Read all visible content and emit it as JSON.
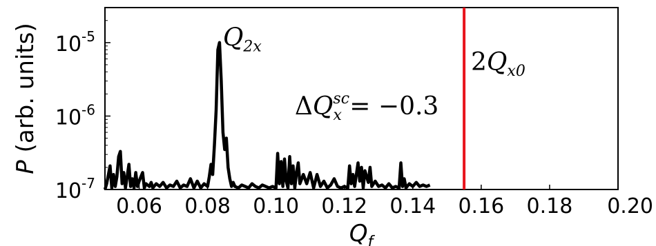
{
  "chart_data": {
    "type": "line",
    "title": "",
    "xlabel": "Q",
    "xlabel_sub": "f",
    "ylabel": "P",
    "ylabel_suffix": " (arb. units)",
    "xlim": [
      0.05,
      0.2
    ],
    "ylim": [
      1e-07,
      3e-05
    ],
    "y_scale": "log",
    "grid": false,
    "legend": "none",
    "colors": {
      "spectrum": "#000000",
      "reference_line": "#e8141c"
    },
    "x_ticks": [
      {
        "value": 0.06,
        "label": "0.06"
      },
      {
        "value": 0.08,
        "label": "0.08"
      },
      {
        "value": 0.1,
        "label": "0.10"
      },
      {
        "value": 0.12,
        "label": "0.12"
      },
      {
        "value": 0.14,
        "label": "0.14"
      },
      {
        "value": 0.16,
        "label": "0.16"
      },
      {
        "value": 0.18,
        "label": "0.18"
      },
      {
        "value": 0.2,
        "label": "0.20"
      }
    ],
    "y_ticks": [
      {
        "value": 1e-07,
        "base": "10",
        "exp": "-7"
      },
      {
        "value": 1e-06,
        "base": "10",
        "exp": "-6"
      },
      {
        "value": 1e-05,
        "base": "10",
        "exp": "-5"
      }
    ],
    "series": [
      {
        "x": [
          0.05,
          0.0505,
          0.0515,
          0.052,
          0.0525,
          0.053,
          0.0535,
          0.054,
          0.0545,
          0.055,
          0.0555,
          0.056,
          0.0565,
          0.057,
          0.0575,
          0.058,
          0.0585,
          0.059,
          0.0595,
          0.06,
          0.061,
          0.0615,
          0.062,
          0.063,
          0.0635,
          0.064,
          0.065,
          0.066,
          0.067,
          0.068,
          0.069,
          0.07,
          0.071,
          0.072,
          0.073,
          0.074,
          0.075,
          0.076,
          0.077,
          0.078,
          0.079,
          0.08,
          0.0805,
          0.081,
          0.0815,
          0.082,
          0.0825,
          0.083,
          0.0835,
          0.084,
          0.0845,
          0.085,
          0.0855,
          0.086,
          0.0865,
          0.087,
          0.0875,
          0.088,
          0.089,
          0.09,
          0.091,
          0.092,
          0.093,
          0.094,
          0.095,
          0.096,
          0.097,
          0.098,
          0.099,
          0.1,
          0.1005,
          0.101,
          0.1015,
          0.102,
          0.1025,
          0.103,
          0.1035,
          0.104,
          0.1045,
          0.105,
          0.1055,
          0.106,
          0.1065,
          0.107,
          0.108,
          0.109,
          0.11,
          0.111,
          0.112,
          0.113,
          0.114,
          0.115,
          0.116,
          0.117,
          0.118,
          0.119,
          0.12,
          0.121,
          0.1215,
          0.122,
          0.1225,
          0.123,
          0.124,
          0.1245,
          0.125,
          0.1255,
          0.126,
          0.127,
          0.1275,
          0.128,
          0.129,
          0.13,
          0.131,
          0.132,
          0.133,
          0.134,
          0.135,
          0.136,
          0.1365,
          0.137,
          0.1375,
          0.138,
          0.139,
          0.14,
          0.141,
          0.142,
          0.143,
          0.144,
          0.145
        ],
        "y": [
          1e-07,
          1.2e-07,
          2.1e-07,
          1.05e-07,
          1.6e-07,
          1.1e-07,
          1.5e-07,
          2.8e-07,
          3.3e-07,
          1.2e-07,
          1.7e-07,
          1.05e-07,
          1.5e-07,
          2.2e-07,
          1.1e-07,
          1.4e-07,
          1.05e-07,
          1.7e-07,
          1.1e-07,
          1.3e-07,
          1.7e-07,
          1.05e-07,
          1.2e-07,
          1.1e-07,
          1.25e-07,
          1.05e-07,
          1.2e-07,
          1.1e-07,
          1.25e-07,
          1.05e-07,
          1.15e-07,
          1.1e-07,
          1.3e-07,
          1.05e-07,
          1.15e-07,
          1.1e-07,
          1.4e-07,
          1.05e-07,
          1.3e-07,
          1.05e-07,
          1.2e-07,
          1.1e-07,
          1.5e-07,
          2.2e-07,
          1.6e-07,
          4e-07,
          1.2e-06,
          8e-06,
          1e-05,
          3e-06,
          6e-07,
          3.5e-07,
          5e-07,
          2e-07,
          1.4e-07,
          1.1e-07,
          1.25e-07,
          1.1e-07,
          1.05e-07,
          1.15e-07,
          1.1e-07,
          1.05e-07,
          1.2e-07,
          1.1e-07,
          1.05e-07,
          1.15e-07,
          1.1e-07,
          1.05e-07,
          1.1e-07,
          1.05e-07,
          3.1e-07,
          1.2e-07,
          2.4e-07,
          1.1e-07,
          2.6e-07,
          1.3e-07,
          1.05e-07,
          2.8e-07,
          1.2e-07,
          2.1e-07,
          1.05e-07,
          1.7e-07,
          2.3e-07,
          1.2e-07,
          1.6e-07,
          1.2e-07,
          1.7e-07,
          1.05e-07,
          1.6e-07,
          1.1e-07,
          1.3e-07,
          1.05e-07,
          1.15e-07,
          1.4e-07,
          1.1e-07,
          1.05e-07,
          1.1e-07,
          1.05e-07,
          2.1e-07,
          1.2e-07,
          1.6e-07,
          1.1e-07,
          2.3e-07,
          1.3e-07,
          2e-07,
          1.05e-07,
          1.8e-07,
          1.25e-07,
          2e-07,
          1.1e-07,
          1.3e-07,
          1.1e-07,
          1.15e-07,
          1.05e-07,
          1.2e-07,
          1.05e-07,
          1.1e-07,
          1.05e-07,
          2.3e-07,
          1.1e-07,
          1.4e-07,
          1.05e-07,
          1.2e-07,
          1.1e-07,
          1.25e-07,
          1.1e-07,
          1.15e-07,
          1.1e-07,
          1.15e-07
        ]
      }
    ],
    "reference_line": {
      "x": 0.155
    },
    "annotations": {
      "peak": {
        "base": "Q",
        "sub": "2x",
        "x": 0.0845,
        "y": 9e-06
      },
      "reference": {
        "prefix": "2",
        "base": "Q",
        "sub": "x0",
        "x": 0.157,
        "y": 4.2e-06
      },
      "tune_shift": {
        "delta": "Δ",
        "base": "Q",
        "sub": "x",
        "sup": "sc",
        "value": " = −0.3",
        "x": 0.1055,
        "y": 1.05e-06
      }
    }
  }
}
